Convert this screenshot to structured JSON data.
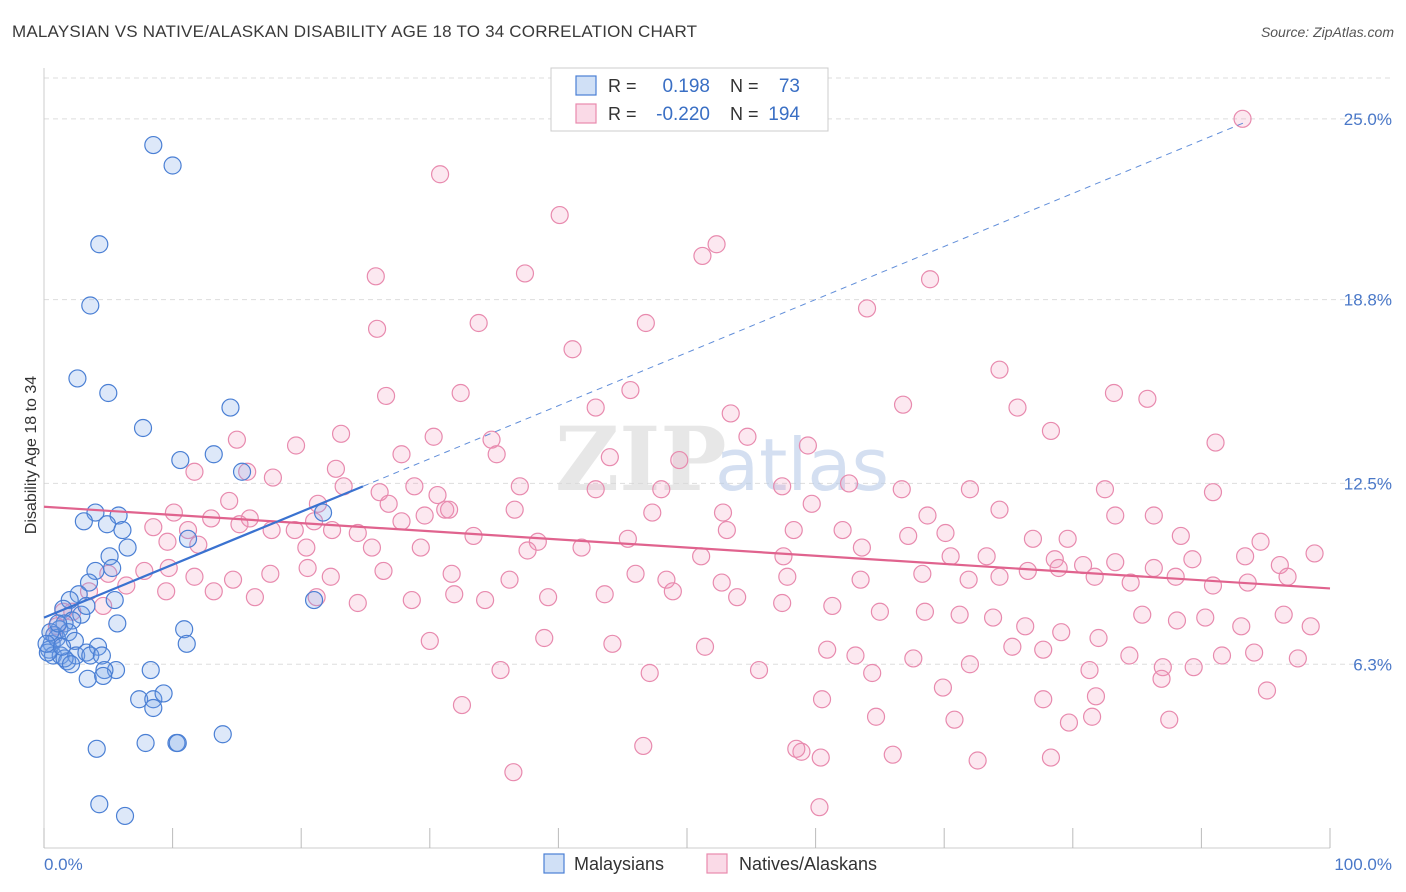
{
  "title": "MALAYSIAN VS NATIVE/ALASKAN DISABILITY AGE 18 TO 34 CORRELATION CHART",
  "source": "Source: ZipAtlas.com",
  "watermark": "ZIPatlas",
  "colors": {
    "malaysian_fill": "rgba(120,165,230,0.25)",
    "malaysian_stroke": "#4a7fd4",
    "malaysian_line": "#3a72d0",
    "native_fill": "rgba(240,150,185,0.22)",
    "native_stroke": "#e88aae",
    "native_line": "#e0638e",
    "tick_label": "#4a78c8",
    "grid": "#dddddd"
  },
  "legend": {
    "rows": [
      {
        "r_label": "R =",
        "r_value": "0.198",
        "n_label": "N =",
        "n_value": "73"
      },
      {
        "r_label": "R =",
        "r_value": "-0.220",
        "n_label": "N =",
        "n_value": "194"
      }
    ]
  },
  "bottom_legend": [
    "Malaysians",
    "Natives/Alaskans"
  ],
  "chart_data": {
    "type": "scatter",
    "title": "MALAYSIAN VS NATIVE/ALASKAN DISABILITY AGE 18 TO 34 CORRELATION CHART",
    "xlabel": "",
    "ylabel": "Disability Age 18 to 34",
    "xlim": [
      0,
      100
    ],
    "ylim": [
      0,
      26.4
    ],
    "x_tick_labels": [
      {
        "value": 0,
        "label": "0.0%"
      },
      {
        "value": 100,
        "label": "100.0%"
      }
    ],
    "y_tick_labels": [
      {
        "value": 6.3,
        "label": "6.3%"
      },
      {
        "value": 12.5,
        "label": "12.5%"
      },
      {
        "value": 18.8,
        "label": "18.8%"
      },
      {
        "value": 25.0,
        "label": "25.0%"
      }
    ],
    "grid": "horizontal dashed",
    "legend_position": "top-center",
    "series": [
      {
        "name": "Malaysians",
        "R": 0.198,
        "N": 73,
        "trend": {
          "x0": 0,
          "y0": 7.9,
          "x1": 24.8,
          "y1": 12.4,
          "extended_to_x": 93.5,
          "extended_y": 24.9
        },
        "points": [
          [
            8.5,
            24.1
          ],
          [
            10.0,
            23.4
          ],
          [
            4.3,
            20.7
          ],
          [
            3.6,
            18.6
          ],
          [
            2.6,
            16.1
          ],
          [
            5.0,
            15.6
          ],
          [
            7.7,
            14.4
          ],
          [
            14.5,
            15.1
          ],
          [
            10.6,
            13.3
          ],
          [
            13.2,
            13.5
          ],
          [
            15.4,
            12.9
          ],
          [
            4.0,
            11.5
          ],
          [
            5.8,
            11.4
          ],
          [
            3.1,
            11.2
          ],
          [
            4.9,
            11.1
          ],
          [
            6.1,
            10.9
          ],
          [
            11.2,
            10.6
          ],
          [
            21.7,
            11.5
          ],
          [
            6.5,
            10.3
          ],
          [
            5.1,
            10.0
          ],
          [
            4.0,
            9.5
          ],
          [
            5.3,
            9.6
          ],
          [
            3.5,
            9.1
          ],
          [
            2.7,
            8.7
          ],
          [
            2.0,
            8.5
          ],
          [
            1.5,
            8.2
          ],
          [
            5.5,
            8.5
          ],
          [
            2.9,
            8.0
          ],
          [
            3.3,
            8.3
          ],
          [
            2.2,
            7.8
          ],
          [
            1.6,
            7.7
          ],
          [
            1.2,
            7.5
          ],
          [
            0.8,
            7.3
          ],
          [
            0.6,
            7.0
          ],
          [
            0.4,
            6.8
          ],
          [
            1.0,
            7.2
          ],
          [
            1.9,
            7.4
          ],
          [
            2.4,
            7.1
          ],
          [
            0.7,
            6.6
          ],
          [
            1.3,
            6.6
          ],
          [
            1.8,
            6.4
          ],
          [
            2.5,
            6.6
          ],
          [
            3.3,
            6.7
          ],
          [
            4.2,
            6.9
          ],
          [
            3.6,
            6.6
          ],
          [
            4.5,
            6.6
          ],
          [
            5.7,
            7.7
          ],
          [
            10.9,
            7.5
          ],
          [
            11.1,
            7.0
          ],
          [
            21.0,
            8.5
          ],
          [
            5.6,
            6.1
          ],
          [
            4.7,
            6.1
          ],
          [
            8.3,
            6.1
          ],
          [
            3.4,
            5.8
          ],
          [
            4.6,
            5.9
          ],
          [
            7.4,
            5.1
          ],
          [
            8.5,
            5.1
          ],
          [
            8.5,
            4.8
          ],
          [
            9.3,
            5.3
          ],
          [
            1.6,
            6.5
          ],
          [
            2.1,
            6.3
          ],
          [
            0.3,
            6.7
          ],
          [
            0.5,
            7.4
          ],
          [
            1.1,
            7.7
          ],
          [
            4.1,
            3.4
          ],
          [
            7.9,
            3.6
          ],
          [
            10.3,
            3.6
          ],
          [
            10.4,
            3.6
          ],
          [
            13.9,
            3.9
          ],
          [
            4.3,
            1.5
          ],
          [
            6.3,
            1.1
          ],
          [
            0.2,
            7.0
          ],
          [
            1.4,
            6.9
          ]
        ]
      },
      {
        "name": "Natives/Alaskans",
        "R": -0.22,
        "N": 194,
        "trend": {
          "x0": 0,
          "y0": 11.7,
          "x1": 100,
          "y1": 8.9
        },
        "points": [
          [
            30.8,
            23.1
          ],
          [
            40.1,
            21.7
          ],
          [
            52.3,
            20.7
          ],
          [
            51.2,
            20.3
          ],
          [
            25.8,
            19.6
          ],
          [
            37.4,
            19.7
          ],
          [
            68.9,
            19.5
          ],
          [
            33.8,
            18.0
          ],
          [
            46.8,
            18.0
          ],
          [
            64.0,
            18.5
          ],
          [
            25.9,
            17.8
          ],
          [
            41.1,
            17.1
          ],
          [
            93.2,
            25.0
          ],
          [
            74.3,
            16.4
          ],
          [
            32.4,
            15.6
          ],
          [
            26.6,
            15.5
          ],
          [
            45.6,
            15.7
          ],
          [
            83.2,
            15.6
          ],
          [
            66.8,
            15.2
          ],
          [
            42.9,
            15.1
          ],
          [
            53.4,
            14.9
          ],
          [
            75.7,
            15.1
          ],
          [
            85.8,
            15.4
          ],
          [
            30.3,
            14.1
          ],
          [
            23.1,
            14.2
          ],
          [
            15.0,
            14.0
          ],
          [
            19.6,
            13.8
          ],
          [
            34.8,
            14.0
          ],
          [
            54.7,
            14.1
          ],
          [
            78.3,
            14.3
          ],
          [
            91.1,
            13.9
          ],
          [
            27.8,
            13.5
          ],
          [
            35.2,
            13.5
          ],
          [
            44.0,
            13.4
          ],
          [
            49.4,
            13.3
          ],
          [
            59.4,
            13.8
          ],
          [
            22.7,
            13.0
          ],
          [
            15.8,
            12.9
          ],
          [
            11.7,
            12.9
          ],
          [
            17.8,
            12.7
          ],
          [
            23.3,
            12.4
          ],
          [
            26.1,
            12.2
          ],
          [
            28.8,
            12.4
          ],
          [
            37.0,
            12.4
          ],
          [
            42.9,
            12.3
          ],
          [
            48.0,
            12.3
          ],
          [
            57.4,
            12.4
          ],
          [
            62.6,
            12.5
          ],
          [
            66.7,
            12.3
          ],
          [
            72.0,
            12.3
          ],
          [
            82.5,
            12.3
          ],
          [
            90.9,
            12.2
          ],
          [
            30.6,
            12.1
          ],
          [
            31.2,
            11.6
          ],
          [
            21.3,
            11.8
          ],
          [
            26.8,
            11.8
          ],
          [
            14.4,
            11.9
          ],
          [
            10.1,
            11.5
          ],
          [
            16.0,
            11.3
          ],
          [
            27.8,
            11.2
          ],
          [
            29.6,
            11.4
          ],
          [
            31.5,
            11.6
          ],
          [
            36.6,
            11.6
          ],
          [
            47.3,
            11.5
          ],
          [
            52.8,
            11.5
          ],
          [
            59.7,
            11.8
          ],
          [
            68.7,
            11.4
          ],
          [
            74.3,
            11.6
          ],
          [
            83.3,
            11.4
          ],
          [
            86.3,
            11.4
          ],
          [
            8.5,
            11.0
          ],
          [
            11.2,
            10.9
          ],
          [
            13.0,
            11.3
          ],
          [
            15.2,
            11.1
          ],
          [
            17.7,
            10.9
          ],
          [
            19.5,
            10.9
          ],
          [
            21.0,
            11.2
          ],
          [
            22.4,
            10.9
          ],
          [
            24.4,
            10.8
          ],
          [
            33.4,
            10.7
          ],
          [
            38.4,
            10.5
          ],
          [
            45.4,
            10.6
          ],
          [
            53.1,
            10.9
          ],
          [
            58.3,
            10.9
          ],
          [
            62.1,
            10.9
          ],
          [
            67.2,
            10.7
          ],
          [
            70.1,
            10.8
          ],
          [
            76.9,
            10.6
          ],
          [
            79.6,
            10.6
          ],
          [
            88.4,
            10.7
          ],
          [
            94.6,
            10.5
          ],
          [
            9.6,
            10.5
          ],
          [
            12.0,
            10.4
          ],
          [
            20.4,
            10.3
          ],
          [
            25.5,
            10.3
          ],
          [
            29.3,
            10.3
          ],
          [
            37.6,
            10.2
          ],
          [
            41.8,
            10.3
          ],
          [
            51.1,
            10.0
          ],
          [
            57.5,
            10.0
          ],
          [
            63.6,
            10.3
          ],
          [
            70.5,
            10.0
          ],
          [
            73.3,
            10.0
          ],
          [
            78.6,
            9.9
          ],
          [
            80.8,
            9.7
          ],
          [
            83.3,
            9.8
          ],
          [
            86.3,
            9.6
          ],
          [
            89.3,
            9.9
          ],
          [
            93.4,
            10.0
          ],
          [
            96.1,
            9.7
          ],
          [
            98.8,
            10.1
          ],
          [
            5.0,
            9.4
          ],
          [
            7.8,
            9.5
          ],
          [
            9.7,
            9.6
          ],
          [
            11.7,
            9.3
          ],
          [
            14.7,
            9.2
          ],
          [
            17.6,
            9.4
          ],
          [
            20.5,
            9.6
          ],
          [
            22.3,
            9.3
          ],
          [
            26.4,
            9.5
          ],
          [
            31.7,
            9.4
          ],
          [
            36.2,
            9.2
          ],
          [
            46.0,
            9.4
          ],
          [
            48.4,
            9.2
          ],
          [
            52.7,
            9.1
          ],
          [
            57.8,
            9.3
          ],
          [
            63.5,
            9.2
          ],
          [
            68.3,
            9.4
          ],
          [
            71.9,
            9.2
          ],
          [
            74.3,
            9.3
          ],
          [
            76.5,
            9.5
          ],
          [
            78.9,
            9.6
          ],
          [
            81.7,
            9.3
          ],
          [
            84.5,
            9.1
          ],
          [
            88.0,
            9.3
          ],
          [
            90.9,
            9.0
          ],
          [
            93.6,
            9.1
          ],
          [
            96.7,
            9.3
          ],
          [
            3.5,
            8.8
          ],
          [
            6.4,
            9.0
          ],
          [
            9.5,
            8.8
          ],
          [
            13.2,
            8.8
          ],
          [
            16.4,
            8.6
          ],
          [
            21.2,
            8.6
          ],
          [
            24.4,
            8.4
          ],
          [
            28.6,
            8.5
          ],
          [
            31.9,
            8.7
          ],
          [
            34.3,
            8.5
          ],
          [
            39.2,
            8.6
          ],
          [
            43.6,
            8.7
          ],
          [
            48.9,
            8.8
          ],
          [
            53.9,
            8.6
          ],
          [
            57.4,
            8.4
          ],
          [
            61.3,
            8.3
          ],
          [
            65.0,
            8.1
          ],
          [
            68.5,
            8.1
          ],
          [
            71.2,
            8.0
          ],
          [
            73.8,
            7.9
          ],
          [
            76.3,
            7.6
          ],
          [
            79.1,
            7.4
          ],
          [
            82.0,
            7.2
          ],
          [
            85.4,
            8.0
          ],
          [
            88.1,
            7.8
          ],
          [
            90.3,
            7.9
          ],
          [
            93.1,
            7.6
          ],
          [
            96.4,
            8.0
          ],
          [
            98.5,
            7.6
          ],
          [
            2.2,
            8.1
          ],
          [
            4.6,
            8.3
          ],
          [
            1.0,
            7.6
          ],
          [
            1.5,
            8.1
          ],
          [
            0.8,
            7.3
          ],
          [
            30.0,
            7.1
          ],
          [
            38.9,
            7.2
          ],
          [
            44.2,
            7.0
          ],
          [
            51.4,
            6.9
          ],
          [
            60.9,
            6.8
          ],
          [
            63.1,
            6.6
          ],
          [
            67.6,
            6.5
          ],
          [
            72.0,
            6.3
          ],
          [
            75.3,
            6.9
          ],
          [
            77.7,
            6.8
          ],
          [
            81.3,
            6.1
          ],
          [
            84.4,
            6.6
          ],
          [
            87.0,
            6.2
          ],
          [
            89.4,
            6.2
          ],
          [
            91.6,
            6.6
          ],
          [
            94.1,
            6.7
          ],
          [
            97.5,
            6.5
          ],
          [
            35.5,
            6.1
          ],
          [
            47.1,
            6.0
          ],
          [
            55.6,
            6.1
          ],
          [
            64.4,
            6.0
          ],
          [
            69.9,
            5.5
          ],
          [
            77.7,
            5.1
          ],
          [
            81.8,
            5.2
          ],
          [
            86.9,
            5.8
          ],
          [
            95.1,
            5.4
          ],
          [
            32.5,
            4.9
          ],
          [
            60.5,
            5.1
          ],
          [
            64.7,
            4.5
          ],
          [
            70.8,
            4.4
          ],
          [
            79.7,
            4.3
          ],
          [
            81.5,
            4.5
          ],
          [
            87.5,
            4.4
          ],
          [
            46.6,
            3.5
          ],
          [
            58.9,
            3.3
          ],
          [
            58.5,
            3.4
          ],
          [
            60.4,
            3.1
          ],
          [
            66.0,
            3.2
          ],
          [
            72.6,
            3.0
          ],
          [
            78.3,
            3.1
          ],
          [
            36.5,
            2.6
          ],
          [
            60.3,
            1.4
          ]
        ]
      }
    ]
  }
}
